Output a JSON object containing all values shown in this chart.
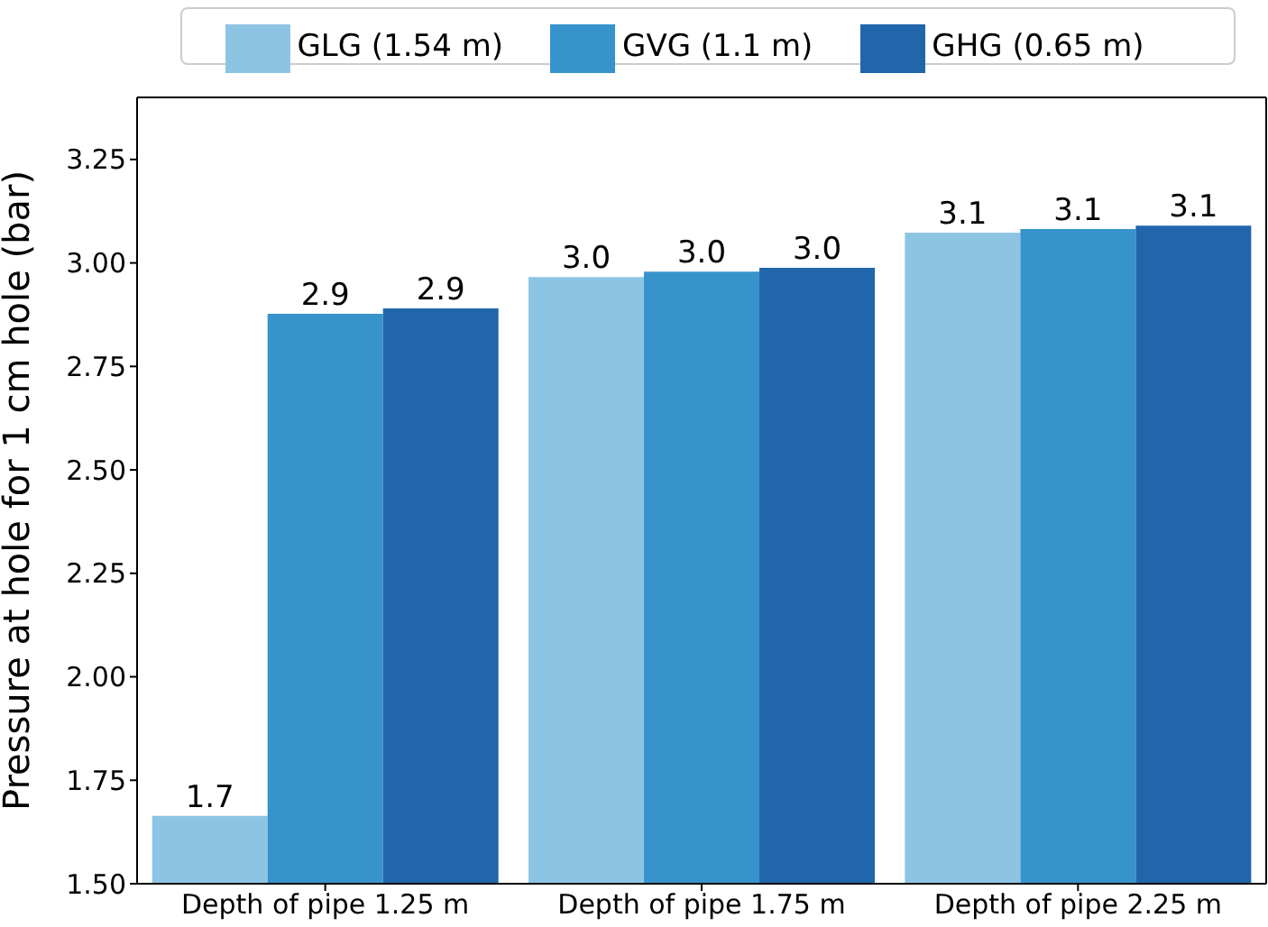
{
  "chart_data": {
    "type": "bar",
    "ylabel": "Pressure at hole for 1 cm hole (bar)",
    "categories": [
      "Depth of pipe 1.25 m",
      "Depth of pipe 1.75 m",
      "Depth of pipe 2.25 m"
    ],
    "series": [
      {
        "name": "GLG (1.54 m)",
        "color": "#8ec4e3",
        "values": [
          1.664,
          2.966,
          3.073
        ],
        "value_labels": [
          "1.7",
          "3.0",
          "3.1"
        ]
      },
      {
        "name": "GVG (1.1 m)",
        "color": "#3793cb",
        "values": [
          2.877,
          2.979,
          3.082
        ],
        "value_labels": [
          "2.9",
          "3.0",
          "3.1"
        ]
      },
      {
        "name": "GHG (0.65 m)",
        "color": "#2166ab",
        "values": [
          2.89,
          2.988,
          3.09
        ],
        "value_labels": [
          "2.9",
          "3.0",
          "3.1"
        ]
      }
    ],
    "ylim": [
      1.5,
      3.4
    ],
    "yticks": [
      {
        "value": 1.5,
        "label": "1.50"
      },
      {
        "value": 1.75,
        "label": "1.75"
      },
      {
        "value": 2.0,
        "label": "2.00"
      },
      {
        "value": 2.25,
        "label": "2.25"
      },
      {
        "value": 2.5,
        "label": "2.50"
      },
      {
        "value": 2.75,
        "label": "2.75"
      },
      {
        "value": 3.0,
        "label": "3.00"
      },
      {
        "value": 3.25,
        "label": "3.25"
      }
    ],
    "grid": false,
    "legend": "top"
  }
}
